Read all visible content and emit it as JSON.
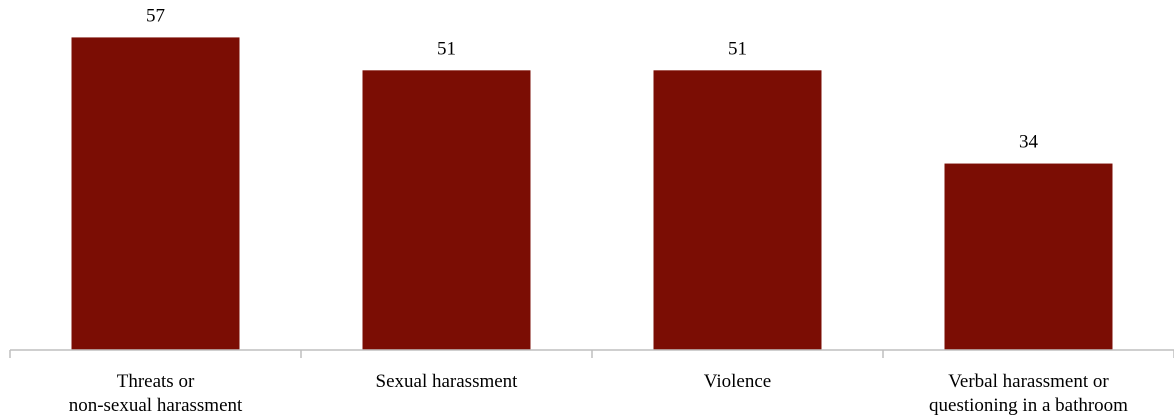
{
  "chart_data": {
    "type": "bar",
    "categories": [
      [
        "Threats or",
        "non-sexual harassment"
      ],
      [
        "Sexual harassment"
      ],
      [
        "Violence"
      ],
      [
        "Verbal harassment or",
        "questioning in a bathroom"
      ]
    ],
    "values": [
      57,
      51,
      51,
      34
    ],
    "data_labels": [
      "57",
      "51",
      "51",
      "34"
    ],
    "title": "",
    "xlabel": "",
    "ylabel": "",
    "ylim": [
      0,
      62
    ],
    "grid": false,
    "legend": "none",
    "bar_color": "#7b0d04"
  }
}
